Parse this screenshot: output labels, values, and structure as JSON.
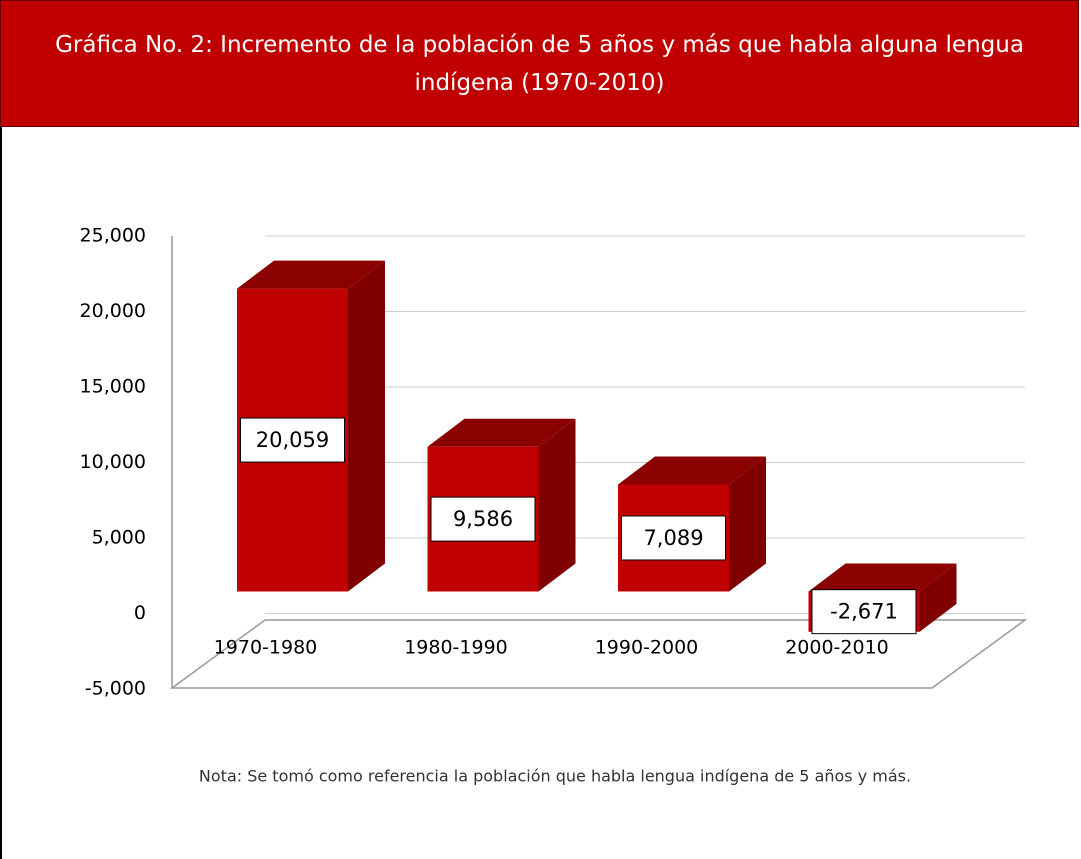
{
  "chart_data": {
    "type": "bar3d",
    "title": "Gráfica No. 2: Incremento de la población de 5 años y más que habla alguna lengua indígena (1970-2010)",
    "categories": [
      "1970-1980",
      "1980-1990",
      "1990-2000",
      "2000-2010"
    ],
    "values": [
      20059,
      9586,
      7089,
      -2671
    ],
    "value_labels": [
      "20,059",
      "9,586",
      "7,089",
      "-2,671"
    ],
    "color": "#c00000",
    "ylim": [
      -5000,
      25000
    ],
    "yticks": [
      {
        "value": -5000,
        "label": "-5,000"
      },
      0,
      {
        "value": 5000,
        "label": "5,000"
      },
      {
        "value": 10000,
        "label": "10,000"
      },
      {
        "value": 15000,
        "label": "15,000"
      },
      {
        "value": 20000,
        "label": "20,000"
      },
      {
        "value": 25000,
        "label": "25,000"
      }
    ],
    "grid": true,
    "note": "Nota: Se tomó como referencia la población que habla lengua indígena de  5 años y más."
  }
}
